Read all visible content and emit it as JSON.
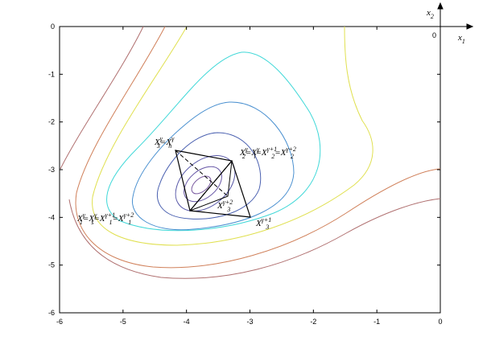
{
  "chart_data": {
    "type": "contour",
    "xlim": [
      -6,
      0
    ],
    "ylim": [
      -6,
      0
    ],
    "xticks": [
      -6,
      -5,
      -4,
      -3,
      -2,
      -1,
      0
    ],
    "yticks": [
      -6,
      -5,
      -4,
      -3,
      -2,
      -1,
      0
    ],
    "annotations": [
      [
        {
          "base": "X",
          "sub": "3",
          "sup": "γ"
        },
        {
          "base": "="
        },
        {
          "base": "X",
          "sub": "h",
          "sup": "γ"
        }
      ],
      [
        {
          "base": "X",
          "sub": "2",
          "sup": "γ"
        },
        {
          "base": "="
        },
        {
          "base": "X",
          "sub": "l",
          "sup": "γ"
        },
        {
          "base": "="
        },
        {
          "base": "X",
          "sub": "2",
          "sup": "γ+1"
        },
        {
          "base": "="
        },
        {
          "base": "X",
          "sub": "2",
          "sup": "γ+2"
        }
      ],
      [
        {
          "base": "X",
          "sub": "3",
          "sup": "γ+2"
        }
      ],
      [
        {
          "base": "X",
          "sub": "1",
          "sup": "γ"
        },
        {
          "base": "="
        },
        {
          "base": "X",
          "sub": "s",
          "sup": "γ"
        },
        {
          "base": "="
        },
        {
          "base": "X",
          "sub": "1",
          "sup": "γ+1"
        },
        {
          "base": "="
        },
        {
          "base": "X",
          "sub": "1",
          "sup": "γ+2"
        }
      ],
      [
        {
          "base": "X",
          "sub": "3",
          "sup": "γ+1"
        }
      ]
    ],
    "corner_axes": {
      "x2": {
        "base": "x",
        "sub": "2"
      },
      "origin": "0",
      "x1": {
        "base": "x",
        "sub": "1"
      }
    }
  }
}
